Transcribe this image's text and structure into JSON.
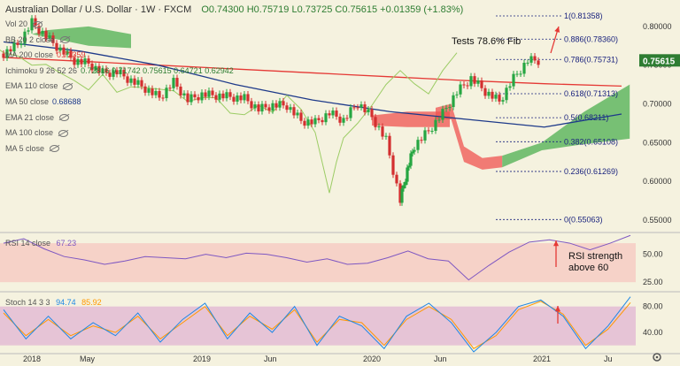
{
  "header": {
    "symbol": "Australian Dollar / U.S. Dollar · 1W · FXCM",
    "ohlc": "O0.74300 H0.75719 L0.73725 C0.75615 +0.01359 (+1.83%)"
  },
  "legend": [
    {
      "label": "Vol 20",
      "value": ""
    },
    {
      "label": "BB 20 2 close",
      "value": ""
    },
    {
      "label": "MA 200 close",
      "value": "0.72359"
    },
    {
      "label": "Ichimoku 9 26 52 26",
      "value": "0.72816  0.71742  0.75615  0.64721  0.62942"
    },
    {
      "label": "EMA 110 close",
      "value": ""
    },
    {
      "label": "MA 50 close",
      "value": "0.68688"
    },
    {
      "label": "EMA 21 close",
      "value": ""
    },
    {
      "label": "MA 100 close",
      "value": ""
    },
    {
      "label": "MA 5 close",
      "value": ""
    }
  ],
  "colors": {
    "background": "#f5f2df",
    "up_candle": "#26a642",
    "down_candle": "#d32f2f",
    "ma200": "#e53935",
    "ma50": "#1e3a8a",
    "tenkan": "#1e88e5",
    "kijun": "#8b1a1a",
    "chikou": "#9ccc65",
    "cloud_bull": "#4caf50",
    "cloud_bear": "#ef5350",
    "fib": "#1a237e",
    "rsi_line": "#7e57c2",
    "stoch_k": "#1e88e5",
    "stoch_d": "#ff9800",
    "price_badge": "#2e7d32",
    "annotation_arrow": "#e53935"
  },
  "annotations": {
    "fib_note": "Tests 78.6% Fib",
    "rsi_note_line1": "RSI strength",
    "rsi_note_line2": "above 60"
  },
  "price_badge": "0.75615",
  "x_axis": {
    "ticks": [
      {
        "label": "2018",
        "date": "2018-01"
      },
      {
        "label": "May",
        "date": "2018-05"
      },
      {
        "label": "2019",
        "date": "2019-01"
      },
      {
        "label": "Jun",
        "date": "2019-06"
      },
      {
        "label": "2020",
        "date": "2020-01"
      },
      {
        "label": "Jun",
        "date": "2020-06"
      },
      {
        "label": "2021",
        "date": "2021-01"
      },
      {
        "label": "Ju",
        "date": "2021-06"
      }
    ]
  },
  "y_axis_price": {
    "ticks": [
      "0.80000",
      "0.75000",
      "0.70000",
      "0.65000",
      "0.60000",
      "0.55000"
    ],
    "range": [
      0.535,
      0.825
    ]
  },
  "rsi_panel": {
    "label": "RSI 14 close",
    "value": "67.23",
    "ticks": [
      "50.00",
      "25.00"
    ]
  },
  "stoch_panel": {
    "label": "Stoch 14 3 3",
    "k_value": "94.74",
    "d_value": "85.92",
    "ticks": [
      "80.00",
      "40.00"
    ]
  },
  "chart_data": {
    "type": "candlestick",
    "title": "Australian Dollar / U.S. Dollar, 1W, FXCM",
    "fib_levels": [
      {
        "label": "1(0.81358)",
        "value": 0.81358
      },
      {
        "label": "0.886(0.78360)",
        "value": 0.7836
      },
      {
        "label": "0.786(0.75731)",
        "value": 0.75731
      },
      {
        "label": "0.618(0.71313)",
        "value": 0.71313
      },
      {
        "label": "0.5(0.68211)",
        "value": 0.68211
      },
      {
        "label": "0.382(0.65108)",
        "value": 0.65108
      },
      {
        "label": "0.236(0.61269)",
        "value": 0.61269
      },
      {
        "label": "0(0.55063)",
        "value": 0.55063
      }
    ],
    "price_ylim": [
      0.535,
      0.825
    ],
    "close_path": [
      {
        "x": "2017-11",
        "y": 0.765
      },
      {
        "x": "2017-12",
        "y": 0.776
      },
      {
        "x": "2018-01",
        "y": 0.805
      },
      {
        "x": "2018-02",
        "y": 0.787
      },
      {
        "x": "2018-03",
        "y": 0.77
      },
      {
        "x": "2018-04",
        "y": 0.756
      },
      {
        "x": "2018-05",
        "y": 0.752
      },
      {
        "x": "2018-06",
        "y": 0.74
      },
      {
        "x": "2018-07",
        "y": 0.741
      },
      {
        "x": "2018-08",
        "y": 0.73
      },
      {
        "x": "2018-09",
        "y": 0.72
      },
      {
        "x": "2018-10",
        "y": 0.708
      },
      {
        "x": "2018-11",
        "y": 0.728
      },
      {
        "x": "2018-12",
        "y": 0.705
      },
      {
        "x": "2019-01",
        "y": 0.712
      },
      {
        "x": "2019-02",
        "y": 0.711
      },
      {
        "x": "2019-03",
        "y": 0.709
      },
      {
        "x": "2019-04",
        "y": 0.707
      },
      {
        "x": "2019-05",
        "y": 0.693
      },
      {
        "x": "2019-06",
        "y": 0.698
      },
      {
        "x": "2019-07",
        "y": 0.698
      },
      {
        "x": "2019-08",
        "y": 0.678
      },
      {
        "x": "2019-09",
        "y": 0.676
      },
      {
        "x": "2019-10",
        "y": 0.688
      },
      {
        "x": "2019-11",
        "y": 0.679
      },
      {
        "x": "2019-12",
        "y": 0.701
      },
      {
        "x": "2020-01",
        "y": 0.683
      },
      {
        "x": "2020-02",
        "y": 0.653
      },
      {
        "x": "2020-03",
        "y": 0.575
      },
      {
        "x": "2020-03b",
        "y": 0.615
      },
      {
        "x": "2020-04",
        "y": 0.646
      },
      {
        "x": "2020-05",
        "y": 0.665
      },
      {
        "x": "2020-06",
        "y": 0.688
      },
      {
        "x": "2020-07",
        "y": 0.715
      },
      {
        "x": "2020-08",
        "y": 0.733
      },
      {
        "x": "2020-09",
        "y": 0.716
      },
      {
        "x": "2020-10",
        "y": 0.703
      },
      {
        "x": "2020-11",
        "y": 0.733
      },
      {
        "x": "2020-12",
        "y": 0.756
      }
    ],
    "ma200_path": [
      0.76,
      0.755,
      0.75,
      0.745,
      0.74,
      0.735,
      0.73,
      0.726,
      0.723
    ],
    "ma50_path": [
      0.78,
      0.768,
      0.75,
      0.725,
      0.705,
      0.69,
      0.68,
      0.67,
      0.6869
    ],
    "rsi_path": [
      60,
      64,
      55,
      48,
      45,
      41,
      44,
      48,
      47,
      46,
      50,
      47,
      51,
      50,
      47,
      43,
      46,
      41,
      42,
      47,
      53,
      46,
      44,
      27,
      40,
      52,
      61,
      63,
      60,
      54,
      60,
      67
    ],
    "stoch_k_path": [
      75,
      30,
      65,
      30,
      55,
      35,
      70,
      25,
      60,
      85,
      30,
      70,
      40,
      80,
      20,
      65,
      50,
      15,
      65,
      85,
      55,
      10,
      40,
      80,
      90,
      65,
      15,
      50,
      95
    ],
    "stoch_d_path": [
      70,
      35,
      60,
      35,
      50,
      40,
      65,
      30,
      55,
      80,
      35,
      65,
      45,
      75,
      25,
      60,
      55,
      20,
      60,
      80,
      60,
      15,
      35,
      75,
      88,
      68,
      20,
      45,
      86
    ]
  }
}
